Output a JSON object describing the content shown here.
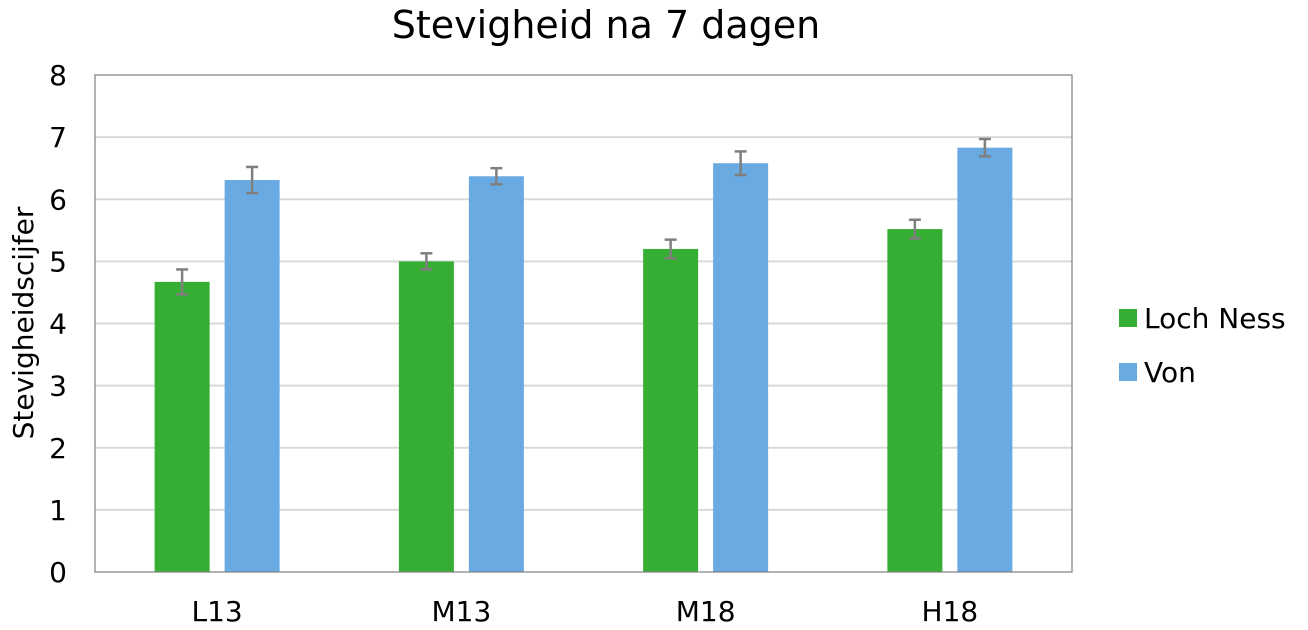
{
  "chart_data": {
    "type": "bar",
    "title": "Stevigheid na 7 dagen",
    "xlabel": "",
    "ylabel": "Stevigheidscijfer",
    "ylim": [
      0,
      8
    ],
    "yticks": [
      "0",
      "1",
      "2",
      "3",
      "4",
      "5",
      "6",
      "7",
      "8"
    ],
    "categories": [
      "L13",
      "M13",
      "M18",
      "H18"
    ],
    "grid": true,
    "legend_position": "right",
    "series": [
      {
        "name": "Loch Ness",
        "color": "#35ae33",
        "values": [
          4.67,
          5.0,
          5.2,
          5.52
        ],
        "errors": [
          0.2,
          0.13,
          0.15,
          0.15
        ]
      },
      {
        "name": "Von",
        "color": "#6aaae3",
        "values": [
          6.31,
          6.37,
          6.58,
          6.83
        ],
        "errors": [
          0.21,
          0.13,
          0.19,
          0.14
        ]
      }
    ]
  }
}
